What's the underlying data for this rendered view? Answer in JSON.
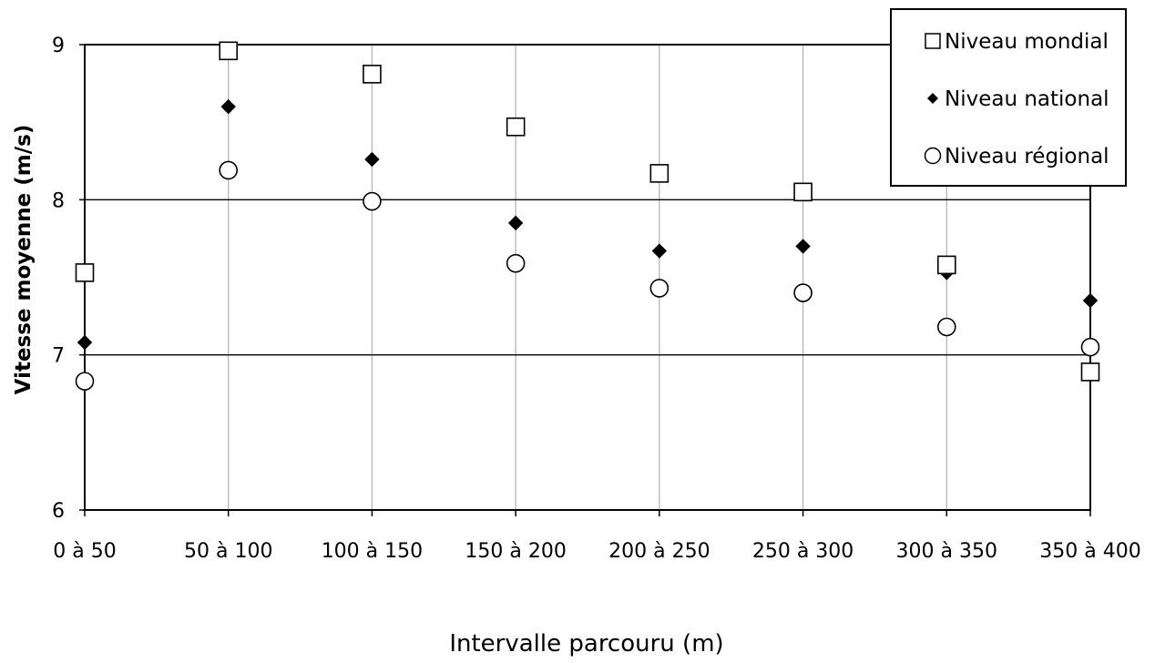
{
  "chart_data": {
    "type": "scatter",
    "title": "",
    "xlabel": "Intervalle parcouru (m)",
    "ylabel": "Vitesse moyenne (m/s)",
    "categories": [
      "0 à 50",
      "50 à 100",
      "100 à 150",
      "150 à 200",
      "200 à 250",
      "250 à 300",
      "300 à 350",
      "350 à 400"
    ],
    "ylim": [
      6,
      9
    ],
    "yticks": [
      6,
      7,
      8,
      9
    ],
    "grid": {
      "horizontal": true,
      "vertical": true
    },
    "legend_position": "top-right",
    "series": [
      {
        "name": "Niveau mondial",
        "marker": "open-square",
        "color": "#000000",
        "values": [
          7.53,
          8.96,
          8.81,
          8.47,
          8.17,
          8.05,
          7.58,
          6.89
        ]
      },
      {
        "name": "Niveau national",
        "marker": "filled-diamond",
        "color": "#000000",
        "values": [
          7.08,
          8.6,
          8.26,
          7.85,
          7.67,
          7.7,
          7.53,
          7.35
        ]
      },
      {
        "name": "Niveau régional",
        "marker": "open-circle",
        "color": "#000000",
        "values": [
          6.83,
          8.19,
          7.99,
          7.59,
          7.43,
          7.4,
          7.18,
          7.05
        ]
      }
    ]
  }
}
